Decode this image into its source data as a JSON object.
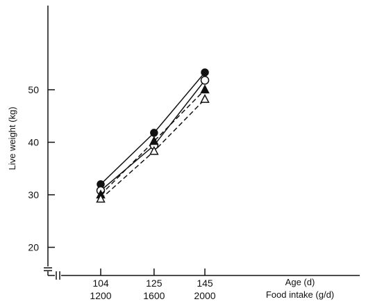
{
  "chart_data": {
    "type": "line",
    "x": [
      104,
      125,
      145
    ],
    "x_secondary": [
      1200,
      1600,
      2000
    ],
    "xlabel": "Age (d)",
    "xlabel_secondary": "Food intake (g/d)",
    "ylabel": "Live weight (kg)",
    "ylim": [
      20,
      60
    ],
    "yticks": [
      20,
      30,
      40,
      50
    ],
    "grid": false,
    "series": [
      {
        "marker": "filled-circle",
        "linestyle": "solid",
        "values": [
          32.0,
          41.8,
          53.3
        ]
      },
      {
        "marker": "open-circle",
        "linestyle": "solid",
        "values": [
          30.8,
          39.4,
          51.8
        ]
      },
      {
        "marker": "filled-triangle",
        "linestyle": "dashed",
        "values": [
          30.0,
          40.2,
          50.0
        ]
      },
      {
        "marker": "open-triangle",
        "linestyle": "dashed",
        "values": [
          29.2,
          38.3,
          48.2
        ]
      }
    ]
  }
}
